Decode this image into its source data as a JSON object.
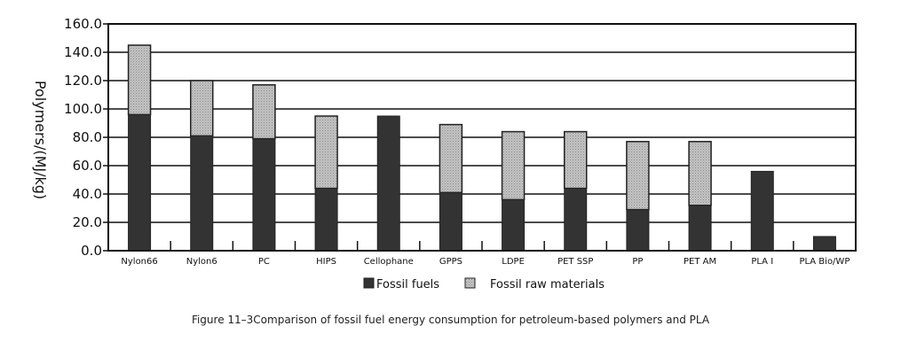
{
  "chart_data": {
    "type": "bar",
    "stacked": true,
    "categories": [
      "Nylon66",
      "Nylon6",
      "PC",
      "HIPS",
      "Cellophane",
      "GPPS",
      "LDPE",
      "PET SSP",
      "PP",
      "PET AM",
      "PLA I",
      "PLA Bio/WP"
    ],
    "series": [
      {
        "name": "Fossil fuels",
        "color": "#333333",
        "values": [
          96,
          81,
          79,
          44,
          95,
          41,
          36,
          44,
          29,
          32,
          56,
          10
        ]
      },
      {
        "name": "Fossil raw materials",
        "color": "#b8b8b8",
        "values": [
          49,
          39,
          38,
          51,
          0,
          48,
          48,
          40,
          48,
          45,
          0,
          0
        ]
      }
    ],
    "ylabel": "Polymers/(MJ/kg)",
    "ylim": [
      0,
      160
    ],
    "yticks": [
      "0.0",
      "20.0",
      "40.0",
      "60.0",
      "80.0",
      "100.0",
      "120.0",
      "140.0",
      "160.0"
    ],
    "grid": true,
    "legend_position": "bottom"
  },
  "caption": "Figure 11–3Comparison of fossil fuel energy consumption for petroleum-based polymers and PLA"
}
